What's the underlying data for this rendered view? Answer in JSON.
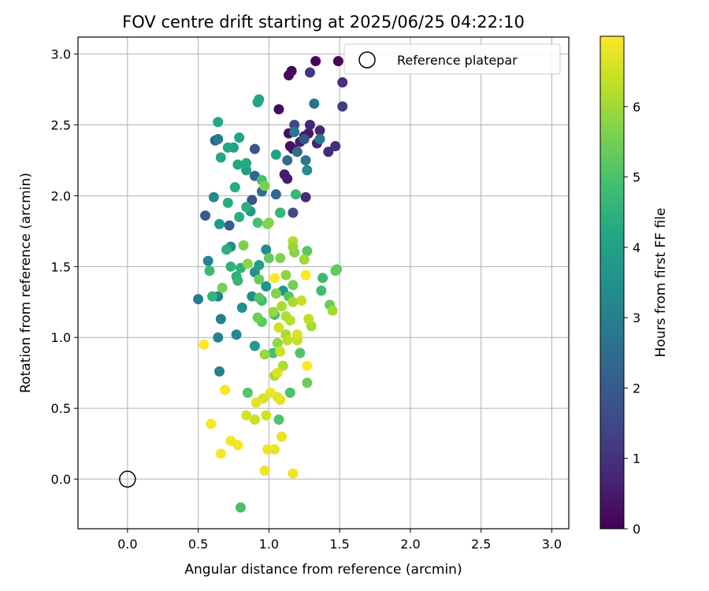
{
  "chart_data": {
    "type": "scatter",
    "title": "FOV centre drift starting at 2025/06/25 04:22:10",
    "xlabel": "Angular distance from reference (arcmin)",
    "ylabel": "Rotation from reference (arcmin)",
    "xlim": [
      -0.35,
      3.12
    ],
    "ylim": [
      -0.35,
      3.12
    ],
    "xticks": [
      0.0,
      0.5,
      1.0,
      1.5,
      2.0,
      2.5,
      3.0
    ],
    "yticks": [
      0.0,
      0.5,
      1.0,
      1.5,
      2.0,
      2.5,
      3.0
    ],
    "xtick_labels": [
      "0.0",
      "0.5",
      "1.0",
      "1.5",
      "2.0",
      "2.5",
      "3.0"
    ],
    "ytick_labels": [
      "0.0",
      "0.5",
      "1.0",
      "1.5",
      "2.0",
      "2.5",
      "3.0"
    ],
    "grid": true,
    "legend": {
      "label": "Reference platepar",
      "placement": "top-right"
    },
    "reference_point": {
      "x": 0.0,
      "y": 0.0
    },
    "colorbar": {
      "label": "Hours from first FF file",
      "colormap": "viridis",
      "range": [
        0,
        7
      ],
      "ticks": [
        0,
        1,
        2,
        3,
        4,
        5,
        6
      ],
      "tick_labels": [
        "0",
        "1",
        "2",
        "3",
        "4",
        "5",
        "6"
      ]
    },
    "points": [
      [
        1.33,
        2.95,
        0.05
      ],
      [
        1.49,
        2.95,
        0.1
      ],
      [
        1.16,
        2.88,
        0.15
      ],
      [
        1.14,
        2.85,
        0.2
      ],
      [
        1.07,
        2.61,
        0.2
      ],
      [
        1.14,
        2.44,
        0.25
      ],
      [
        1.15,
        2.35,
        0.3
      ],
      [
        1.17,
        2.33,
        0.35
      ],
      [
        1.25,
        2.42,
        0.4
      ],
      [
        1.28,
        2.44,
        0.45
      ],
      [
        1.13,
        2.12,
        0.5
      ],
      [
        1.11,
        2.15,
        0.55
      ],
      [
        1.22,
        2.38,
        0.6
      ],
      [
        1.34,
        2.37,
        0.65
      ],
      [
        1.36,
        2.46,
        0.7
      ],
      [
        1.29,
        2.5,
        0.75
      ],
      [
        1.26,
        1.99,
        0.8
      ],
      [
        1.42,
        2.31,
        0.85
      ],
      [
        1.47,
        2.35,
        0.9
      ],
      [
        1.52,
        2.8,
        0.95
      ],
      [
        1.29,
        2.87,
        1.1
      ],
      [
        1.52,
        2.63,
        1.3
      ],
      [
        1.18,
        2.5,
        1.5
      ],
      [
        1.17,
        1.88,
        1.6
      ],
      [
        1.08,
        1.88,
        1.7
      ],
      [
        0.88,
        1.97,
        1.8
      ],
      [
        1.25,
        2.4,
        1.85
      ],
      [
        0.9,
        2.33,
        1.9
      ],
      [
        0.55,
        1.86,
        2.0
      ],
      [
        0.72,
        1.79,
        2.1
      ],
      [
        0.62,
        2.39,
        2.2
      ],
      [
        0.9,
        2.14,
        2.3
      ],
      [
        1.05,
        2.01,
        2.4
      ],
      [
        1.13,
        2.25,
        2.45
      ],
      [
        1.2,
        2.31,
        2.5
      ],
      [
        0.95,
        2.03,
        2.55
      ],
      [
        1.32,
        2.65,
        2.6
      ],
      [
        1.18,
        2.45,
        2.7
      ],
      [
        1.26,
        2.25,
        2.75
      ],
      [
        1.36,
        2.4,
        2.8
      ],
      [
        0.64,
        2.4,
        2.9
      ],
      [
        0.5,
        1.27,
        2.9
      ],
      [
        0.66,
        1.13,
        3.0
      ],
      [
        0.64,
        1.29,
        3.0
      ],
      [
        0.65,
        0.76,
        3.05
      ],
      [
        0.64,
        1.0,
        3.1
      ],
      [
        0.77,
        1.02,
        3.15
      ],
      [
        0.57,
        1.54,
        3.2
      ],
      [
        0.61,
        1.99,
        3.25
      ],
      [
        0.73,
        1.64,
        3.3
      ],
      [
        0.98,
        1.62,
        3.35
      ],
      [
        1.27,
        2.18,
        3.4
      ],
      [
        0.88,
        1.29,
        3.45
      ],
      [
        0.81,
        1.21,
        3.5
      ],
      [
        0.9,
        1.46,
        3.55
      ],
      [
        0.98,
        1.36,
        3.6
      ],
      [
        1.1,
        1.33,
        3.65
      ],
      [
        0.9,
        0.94,
        3.7
      ],
      [
        0.87,
        1.89,
        3.75
      ],
      [
        0.65,
        1.8,
        3.8
      ],
      [
        0.93,
        1.51,
        3.85
      ],
      [
        0.75,
        2.34,
        3.9
      ],
      [
        0.84,
        2.18,
        3.95
      ],
      [
        1.05,
        2.29,
        4.0
      ],
      [
        0.79,
        2.41,
        4.0
      ],
      [
        0.92,
        2.66,
        4.05
      ],
      [
        0.93,
        2.68,
        4.1
      ],
      [
        0.64,
        2.52,
        4.15
      ],
      [
        0.66,
        2.27,
        4.15
      ],
      [
        0.71,
        2.34,
        4.2
      ],
      [
        0.78,
        2.22,
        4.2
      ],
      [
        0.84,
        2.23,
        4.25
      ],
      [
        0.76,
        2.06,
        4.3
      ],
      [
        0.71,
        1.95,
        4.3
      ],
      [
        0.79,
        1.85,
        4.35
      ],
      [
        0.84,
        1.92,
        4.4
      ],
      [
        0.77,
        1.43,
        4.4
      ],
      [
        0.7,
        1.62,
        4.45
      ],
      [
        0.73,
        1.5,
        4.5
      ],
      [
        0.8,
        1.49,
        4.5
      ],
      [
        0.6,
        1.29,
        4.55
      ],
      [
        0.78,
        1.4,
        4.6
      ],
      [
        1.08,
        1.88,
        4.6
      ],
      [
        1.19,
        2.01,
        4.65
      ],
      [
        0.58,
        1.47,
        4.7
      ],
      [
        1.38,
        1.42,
        4.75
      ],
      [
        1.37,
        1.33,
        4.8
      ],
      [
        0.95,
        1.26,
        4.8
      ],
      [
        1.04,
        1.16,
        4.85
      ],
      [
        1.03,
        0.89,
        4.85
      ],
      [
        0.95,
        2.11,
        4.9
      ],
      [
        0.92,
        1.81,
        4.95
      ],
      [
        0.8,
        -0.2,
        4.95
      ],
      [
        1.15,
        0.61,
        5.0
      ],
      [
        1.07,
        0.42,
        5.0
      ],
      [
        1.22,
        0.89,
        5.05
      ],
      [
        0.85,
        0.61,
        5.1
      ],
      [
        1.14,
        1.29,
        5.15
      ],
      [
        0.93,
        1.28,
        5.15
      ],
      [
        0.95,
        1.11,
        5.2
      ],
      [
        1.27,
        1.61,
        5.2
      ],
      [
        1.48,
        1.48,
        5.25
      ],
      [
        1.47,
        1.47,
        5.3
      ],
      [
        1.0,
        1.56,
        5.3
      ],
      [
        0.93,
        1.41,
        5.35
      ],
      [
        1.27,
        0.68,
        5.4
      ],
      [
        1.43,
        1.23,
        5.4
      ],
      [
        0.92,
        1.14,
        5.45
      ],
      [
        1.17,
        1.37,
        5.5
      ],
      [
        0.67,
        1.35,
        5.55
      ],
      [
        0.97,
        2.07,
        5.6
      ],
      [
        0.82,
        1.65,
        5.6
      ],
      [
        0.99,
        1.8,
        5.65
      ],
      [
        1.0,
        1.81,
        5.7
      ],
      [
        1.18,
        1.6,
        5.75
      ],
      [
        0.85,
        1.52,
        5.8
      ],
      [
        1.06,
        0.96,
        5.85
      ],
      [
        0.97,
        0.88,
        5.9
      ],
      [
        1.45,
        1.19,
        6.0
      ],
      [
        1.3,
        1.08,
        6.05
      ],
      [
        1.12,
        1.02,
        6.1
      ],
      [
        1.04,
        0.73,
        6.1
      ],
      [
        1.1,
        0.8,
        6.15
      ],
      [
        1.17,
        1.68,
        6.2
      ],
      [
        1.15,
        1.12,
        6.25
      ],
      [
        1.28,
        1.13,
        6.3
      ],
      [
        1.2,
        0.98,
        6.35
      ],
      [
        0.9,
        0.42,
        6.4
      ],
      [
        1.08,
        0.9,
        6.45
      ],
      [
        0.98,
        0.45,
        6.5
      ],
      [
        0.84,
        0.45,
        6.55
      ],
      [
        0.96,
        0.57,
        6.6
      ],
      [
        1.06,
        0.58,
        6.65
      ],
      [
        1.08,
        0.56,
        6.7
      ],
      [
        1.09,
        0.3,
        6.75
      ],
      [
        1.04,
        0.21,
        6.75
      ],
      [
        0.99,
        0.21,
        6.8
      ],
      [
        1.17,
        0.04,
        6.85
      ],
      [
        0.97,
        0.06,
        6.85
      ],
      [
        0.73,
        0.27,
        6.9
      ],
      [
        0.78,
        0.24,
        6.9
      ],
      [
        0.66,
        0.18,
        6.95
      ],
      [
        0.59,
        0.39,
        6.95
      ],
      [
        0.69,
        0.63,
        6.95
      ],
      [
        0.54,
        0.95,
        7.0
      ],
      [
        1.04,
        1.42,
        7.0
      ],
      [
        1.26,
        1.44,
        7.0
      ],
      [
        1.27,
        0.8,
        6.98
      ],
      [
        1.2,
        1.02,
        6.6
      ],
      [
        1.13,
        0.98,
        6.3
      ],
      [
        1.07,
        1.07,
        6.5
      ],
      [
        1.09,
        1.22,
        6.1
      ],
      [
        1.03,
        1.18,
        5.9
      ],
      [
        1.05,
        1.31,
        5.7
      ],
      [
        1.12,
        1.44,
        5.8
      ],
      [
        1.08,
        1.56,
        5.6
      ],
      [
        1.17,
        1.64,
        5.9
      ],
      [
        1.25,
        1.55,
        6.0
      ],
      [
        1.12,
        1.15,
        6.2
      ],
      [
        1.23,
        1.26,
        6.4
      ],
      [
        1.17,
        1.25,
        6.1
      ],
      [
        1.06,
        0.75,
        6.6
      ],
      [
        1.01,
        0.61,
        6.8
      ],
      [
        0.91,
        0.54,
        6.7
      ]
    ]
  }
}
